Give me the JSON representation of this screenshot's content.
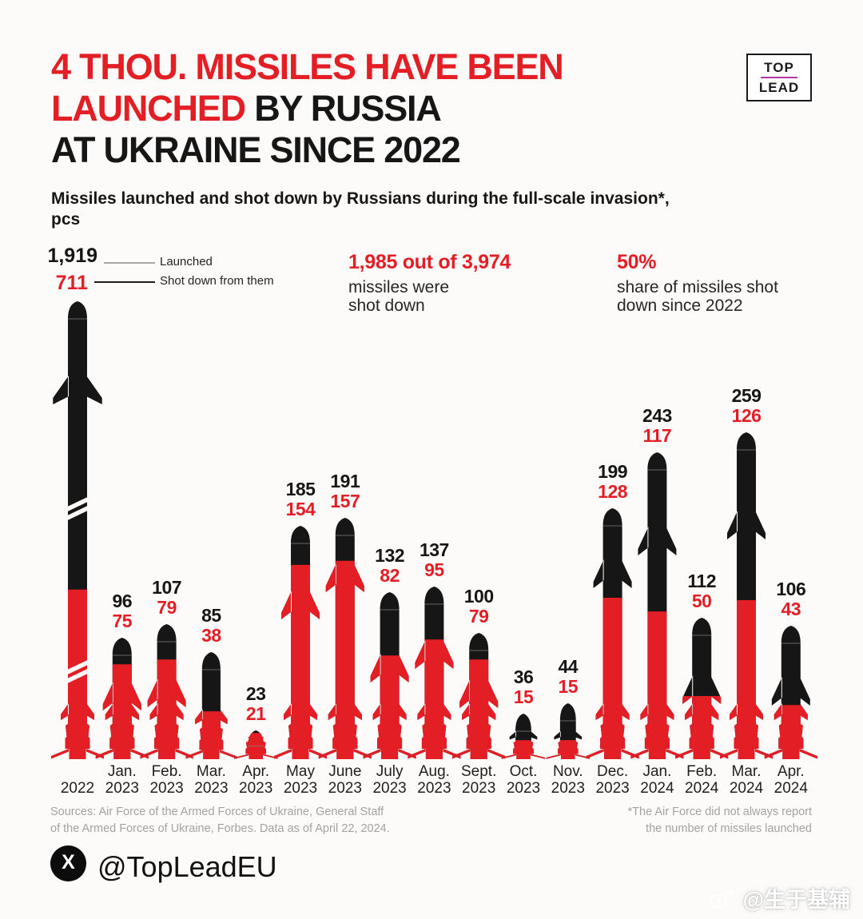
{
  "page": {
    "background": "#fcfbf9",
    "accent_red": "#e41e25",
    "text_black": "#161616"
  },
  "logo": {
    "line1": "TOP",
    "line2": "LEAD"
  },
  "title": {
    "line1_red": "4 THOU. MISSILES HAVE BEEN",
    "line2_red": "LAUNCHED",
    "line2_black": " BY RUSSIA",
    "line3_black": "AT UKRAINE SINCE 2022"
  },
  "subtitle": {
    "line1": "Missiles launched and shot down by Russians during the full-scale invasion*,",
    "line2": "pcs"
  },
  "legend": {
    "launched_value": "1,919",
    "launched_label": "Launched",
    "shot_value": "711",
    "shot_label": "Shot down from them"
  },
  "stats": {
    "stat1": {
      "highlight": "1,985 out of 3,974",
      "line1": "missiles were",
      "line2": "shot down"
    },
    "stat2": {
      "highlight": "50%",
      "line1": "share of missiles shot",
      "line2": "down since 2022"
    }
  },
  "chart_data": {
    "type": "bar",
    "title": "Missiles launched and shot down by Russians during the full-scale invasion, pcs",
    "categories": [
      "2022",
      "Jan. 2023",
      "Feb. 2023",
      "Mar. 2023",
      "Apr. 2023",
      "May 2023",
      "June 2023",
      "July 2023",
      "Aug. 2023",
      "Sept. 2023",
      "Oct. 2023",
      "Nov. 2023",
      "Dec. 2023",
      "Jan. 2024",
      "Feb. 2024",
      "Mar. 2024",
      "Apr. 2024"
    ],
    "series": [
      {
        "name": "Launched",
        "color": "#161616",
        "values": [
          1919,
          96,
          107,
          85,
          23,
          185,
          191,
          132,
          137,
          100,
          36,
          44,
          199,
          243,
          112,
          259,
          106
        ]
      },
      {
        "name": "Shot down from them",
        "color": "#e41e25",
        "values": [
          711,
          75,
          79,
          38,
          21,
          154,
          157,
          82,
          95,
          79,
          15,
          15,
          128,
          117,
          50,
          126,
          43
        ]
      }
    ],
    "totals": {
      "launched": 3974,
      "shot_down": 1985,
      "share_shot_down": "50%"
    },
    "bar_style": "missile pictogram; full height = launched, red lower segment = shot down",
    "axis_break_bar": "2022",
    "legend_position": "top-left",
    "grid": false
  },
  "footer": {
    "sources_line1": "Sources: Air Force of the Armed Forces of Ukraine, General Staff",
    "sources_line2": "of the Armed Forces of Ukraine, Forbes. Data as of April 22, 2024.",
    "footnote_line1": "*The Air Force did not always report",
    "footnote_line2": "the number of missiles launched",
    "handle": "@TopLeadEU"
  },
  "watermark": {
    "text": "@生于基辅"
  }
}
